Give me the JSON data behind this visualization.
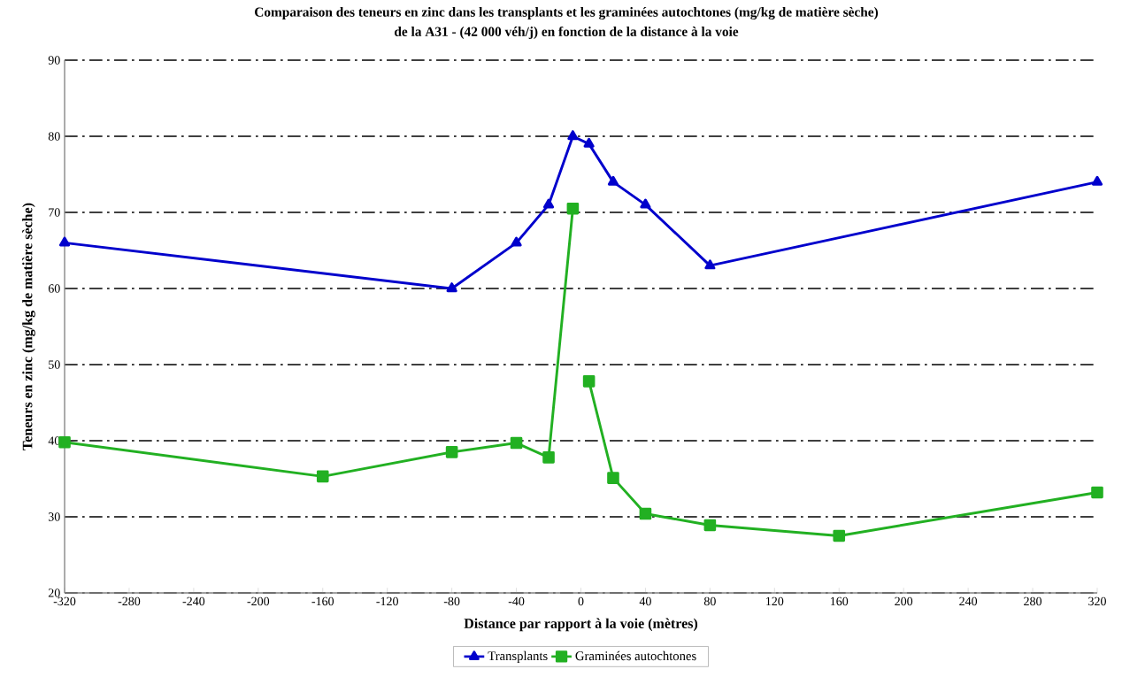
{
  "chart_data": {
    "type": "line",
    "title": "Comparaison des teneurs en zinc dans les transplants et les graminées autochtones (mg/kg de matière sèche)",
    "subtitle": "de la A31 - (42 000 véh/j) en fonction de la distance à la voie",
    "xlabel": "Distance par rapport à la voie (mètres)",
    "ylabel": "Teneurs en zinc (mg/kg de matière sèche)",
    "series": [
      {
        "name": "Transplants",
        "color": "#0000cc",
        "marker": "triangle",
        "x": [
          -320,
          -80,
          -40,
          -20,
          -5,
          5,
          20,
          40,
          80,
          320
        ],
        "values": [
          66,
          60,
          66,
          71,
          80,
          79,
          74,
          71,
          63,
          74
        ]
      },
      {
        "name": "Graminées autochtones",
        "color": "#22b022",
        "marker": "square",
        "x": [
          -320,
          -160,
          -80,
          -40,
          -20,
          -5,
          0,
          5,
          20,
          40,
          80,
          160,
          320
        ],
        "values": [
          39.8,
          35.3,
          38.5,
          39.7,
          37.8,
          70.5,
          null,
          47.8,
          35.1,
          30.4,
          28.9,
          27.5,
          33.2
        ]
      }
    ],
    "xlim": [
      -320,
      320
    ],
    "xticks": [
      -320,
      -280,
      -240,
      -200,
      -160,
      -120,
      -80,
      -40,
      0,
      40,
      80,
      120,
      160,
      200,
      240,
      280,
      320
    ],
    "ylim": [
      20,
      90
    ],
    "yticks": [
      20,
      30,
      40,
      50,
      60,
      70,
      80,
      90
    ],
    "grid": "y",
    "legend": "bottom",
    "line_style": "solid"
  }
}
